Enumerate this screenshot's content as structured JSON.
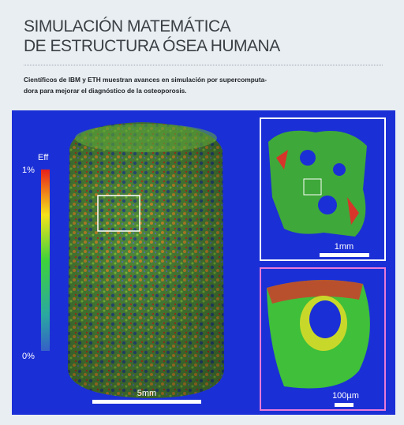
{
  "header": {
    "title_lines": [
      "SIMULACIÓN MATEMÁTICA",
      "DE ESTRUCTURA ÓSEA HUMANA"
    ],
    "subtitle_lines": [
      "Científicos de IBM y ETH muestran avances en simulación por supercomputa-",
      "dora para mejorar el diagnóstico de la osteoporosis."
    ]
  },
  "figure": {
    "scale_title": "Eff",
    "scale_max": "1%",
    "scale_min": "0%",
    "main_scale": "5mm",
    "inset_top_scale": "1mm",
    "inset_bottom_scale": "100µm"
  }
}
